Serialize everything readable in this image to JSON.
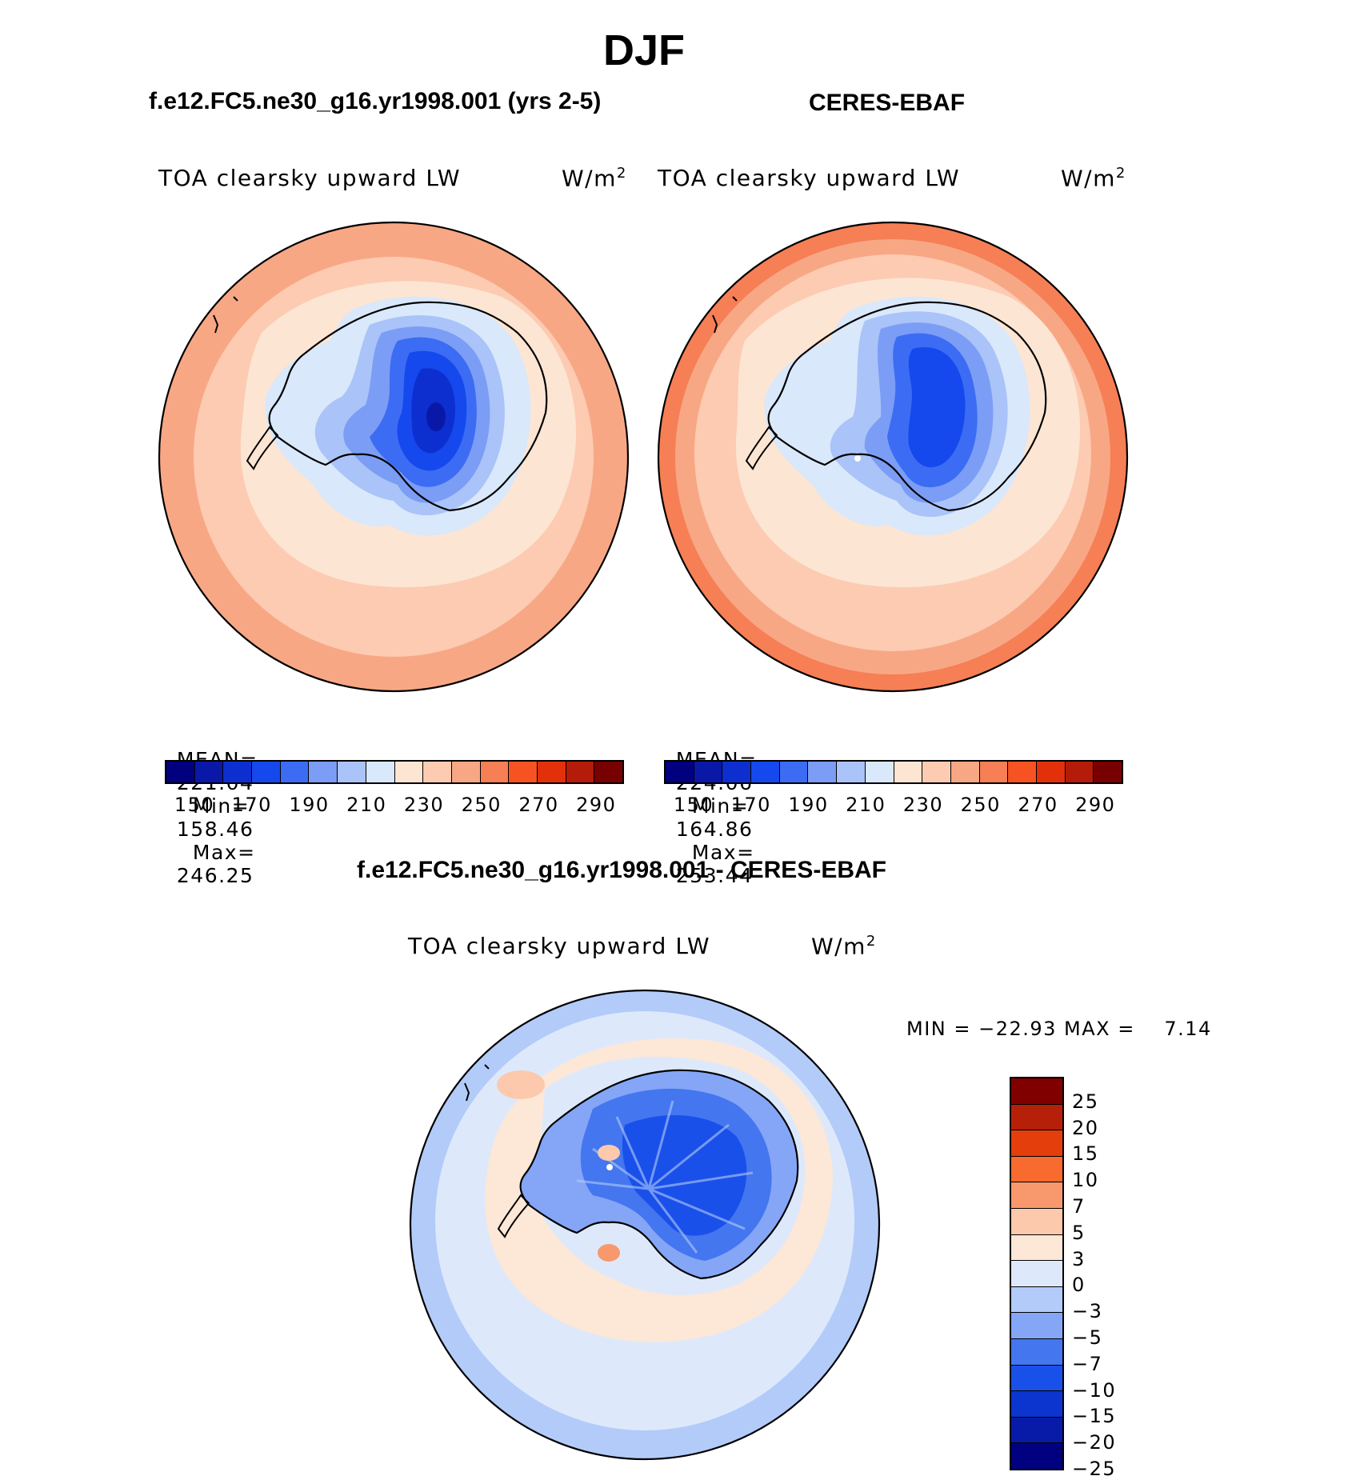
{
  "title": "DJF",
  "panels": [
    {
      "header": "f.e12.FC5.ne30_g16.yr1998.001 (yrs 2-5)",
      "variable": "TOA clearsky upward LW",
      "units_base": "W/m",
      "units_exp": "2",
      "stats": {
        "mean_label": "MEAN=",
        "mean": "221.04",
        "min_label": "Min=",
        "min": "158.46",
        "max_label": "Max=",
        "max": "246.25"
      }
    },
    {
      "header": "CERES-EBAF",
      "variable": "TOA clearsky upward LW",
      "units_base": "W/m",
      "units_exp": "2",
      "stats": {
        "mean_label": "MEAN=",
        "mean": "224.06",
        "min_label": "Min=",
        "min": "164.86",
        "max_label": "Max=",
        "max": "253.44"
      }
    }
  ],
  "diff": {
    "header": "f.e12.FC5.ne30_g16.yr1998.001 - CERES-EBAF",
    "variable": "TOA clearsky upward LW",
    "units_base": "W/m",
    "units_exp": "2",
    "minmax_text": "MIN = −22.93 MAX =    7.14"
  },
  "chart_data": {
    "type": "map",
    "projection": "south-polar-stereographic",
    "season": "DJF",
    "absolute_colorbar": {
      "colors": [
        "#02007f",
        "#0a18a8",
        "#0d2fd0",
        "#1548ed",
        "#3b6cf3",
        "#7b9df5",
        "#aac3f8",
        "#d9e8fb",
        "#fde5d3",
        "#fccbb2",
        "#f8a785",
        "#f67f55",
        "#f75322",
        "#e2300b",
        "#b41b08",
        "#790000"
      ],
      "tick_labels": [
        "150",
        "170",
        "190",
        "210",
        "230",
        "250",
        "270",
        "290"
      ]
    },
    "diff_colorbar": {
      "colors": [
        "#000080",
        "#081aa8",
        "#0c35cf",
        "#1a50ea",
        "#4476f0",
        "#85a6f6",
        "#b3cbf9",
        "#dde9fb",
        "#fde7d6",
        "#fcc9ad",
        "#f7996d",
        "#f86a2e",
        "#e33e0b",
        "#b61f08",
        "#800000"
      ],
      "tick_labels": [
        "25",
        "20",
        "15",
        "10",
        "7",
        "5",
        "3",
        "0",
        "−3",
        "−5",
        "−7",
        "−10",
        "−15",
        "−20",
        "−25"
      ]
    }
  }
}
